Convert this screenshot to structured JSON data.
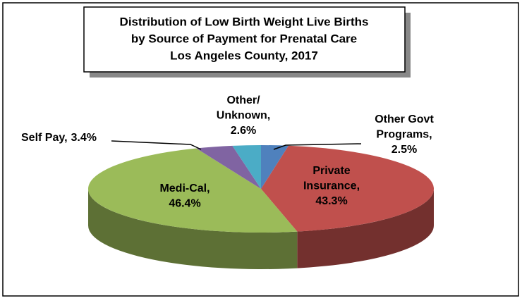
{
  "chart_data": {
    "type": "pie3d",
    "title": [
      "Distribution of Low Birth Weight Live Births",
      "by Source of Payment for Prenatal Care",
      "Los Angeles County, 2017"
    ],
    "categories": [
      [
        "Other Govt",
        "Programs,"
      ],
      [
        "Private",
        "Insurance,"
      ],
      [
        "Medi-Cal,"
      ],
      [
        "Self Pay,"
      ],
      [
        "Other/",
        "Unknown,"
      ]
    ],
    "values": [
      2.5,
      43.3,
      46.4,
      3.4,
      2.6
    ],
    "value_labels": [
      "2.5%",
      "43.3%",
      "46.4%",
      "3.4%",
      "2.6%"
    ],
    "colors": [
      "#4f81bd",
      "#c0504d",
      "#9bbb59",
      "#8064a2",
      "#4bacc6"
    ]
  }
}
